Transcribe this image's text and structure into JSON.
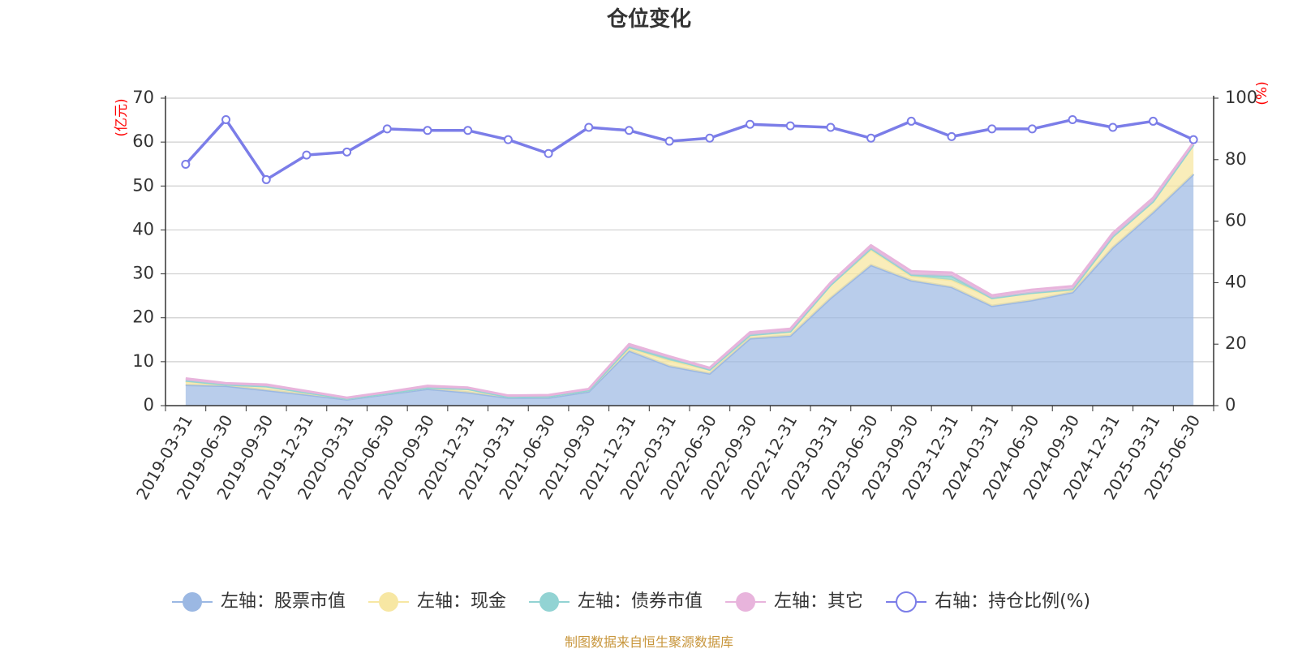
{
  "chart_data": {
    "type": "area",
    "title": "仓位变化",
    "y_left_unit": "(亿元)",
    "y_right_unit": "(%)",
    "y_left_range": [
      0,
      70
    ],
    "y_left_ticks": [
      "0",
      "10",
      "20",
      "30",
      "40",
      "50",
      "60",
      "70"
    ],
    "y_right_range": [
      0,
      100
    ],
    "y_right_ticks": [
      "0",
      "20",
      "40",
      "60",
      "80",
      "100"
    ],
    "grid": true,
    "legend_position": "bottom",
    "categories": [
      "2019-03-31",
      "2019-06-30",
      "2019-09-30",
      "2019-12-31",
      "2020-03-31",
      "2020-06-30",
      "2020-09-30",
      "2020-12-31",
      "2021-03-31",
      "2021-06-30",
      "2021-09-30",
      "2021-12-31",
      "2022-03-31",
      "2022-06-30",
      "2022-09-30",
      "2022-12-31",
      "2023-03-31",
      "2023-06-30",
      "2023-09-30",
      "2023-12-31",
      "2024-03-31",
      "2024-06-30",
      "2024-09-30",
      "2024-12-31",
      "2025-03-31",
      "2025-06-30"
    ],
    "series": [
      {
        "name": "左轴：股票市值",
        "axis": "left",
        "stacked": true,
        "color": "#9bb8e3",
        "values": [
          4.7,
          4.5,
          3.5,
          2.5,
          1.4,
          2.6,
          3.8,
          3.0,
          1.8,
          1.8,
          3.2,
          12.5,
          9.0,
          7.3,
          15.3,
          15.9,
          24.5,
          32.0,
          28.5,
          27.0,
          22.7,
          24.0,
          25.8,
          36.0,
          44.0,
          52.7
        ]
      },
      {
        "name": "左轴：现金",
        "axis": "left",
        "stacked": true,
        "color": "#f7e7a3",
        "values": [
          0.8,
          0.3,
          0.9,
          0.5,
          0.2,
          0.2,
          0.3,
          0.8,
          0.2,
          0.3,
          0.3,
          0.6,
          1.3,
          0.9,
          0.8,
          1.0,
          3.0,
          3.5,
          1.0,
          1.6,
          1.8,
          1.7,
          0.5,
          2.5,
          2.5,
          6.7
        ]
      },
      {
        "name": "左轴：债券市值",
        "axis": "left",
        "stacked": true,
        "color": "#92d3d3",
        "values": [
          0.2,
          0.0,
          0.0,
          0.0,
          0.0,
          0.0,
          0.0,
          0.0,
          0.0,
          0.0,
          0.0,
          0.3,
          0.5,
          0.0,
          0.0,
          0.0,
          0.0,
          0.3,
          0.3,
          0.9,
          0.0,
          0.0,
          0.2,
          0.0,
          0.0,
          0.0
        ]
      },
      {
        "name": "左轴：其它",
        "axis": "left",
        "stacked": true,
        "color": "#e8b4dc",
        "values": [
          0.5,
          0.3,
          0.4,
          0.3,
          0.2,
          0.3,
          0.4,
          0.3,
          0.3,
          0.3,
          0.3,
          0.6,
          0.4,
          0.4,
          0.6,
          0.6,
          0.5,
          0.7,
          0.8,
          0.8,
          0.6,
          0.7,
          0.7,
          0.8,
          0.8,
          0.5
        ]
      },
      {
        "name": "右轴：持仓比例(%)",
        "axis": "right",
        "type": "line",
        "color": "#7b7de8",
        "values": [
          78.5,
          93.0,
          73.5,
          81.5,
          82.5,
          90.0,
          89.5,
          89.5,
          86.5,
          82.0,
          90.5,
          89.5,
          86.0,
          87.0,
          91.5,
          91.0,
          90.5,
          87.0,
          92.5,
          87.5,
          90.0,
          90.0,
          93.0,
          90.5,
          92.5,
          86.5
        ]
      }
    ]
  },
  "source_text": "制图数据来自恒生聚源数据库"
}
